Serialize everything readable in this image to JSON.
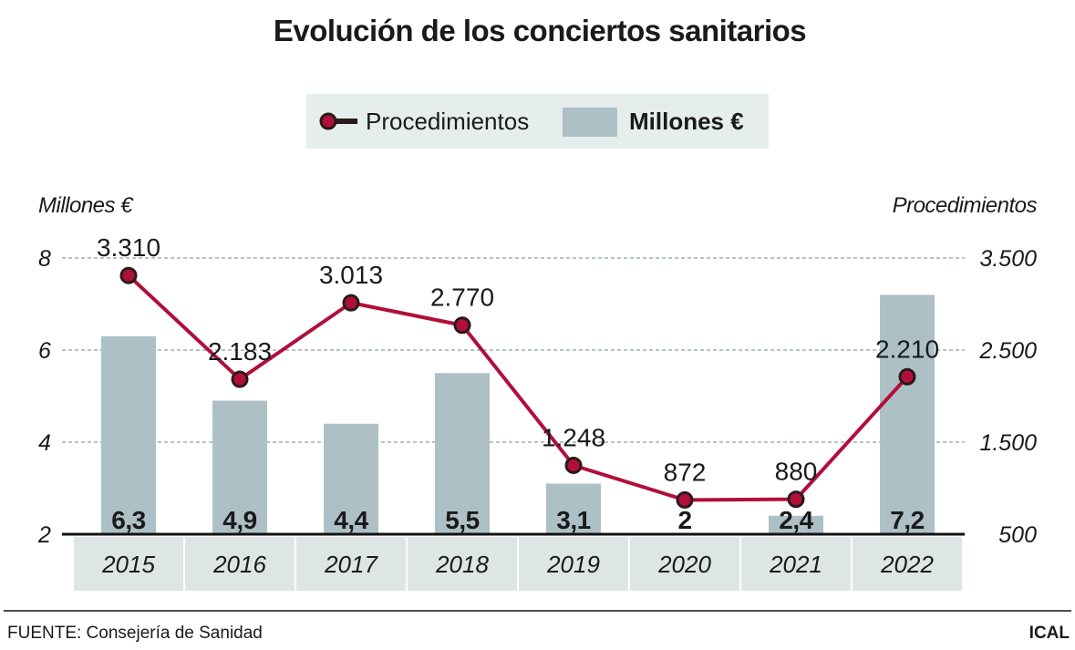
{
  "colors": {
    "bar": "#adc0c6",
    "line": "#b10f3a",
    "marker_outline": "#2a1a1a",
    "legend_bg": "#e6eded",
    "year_cell": "#dde6e5",
    "grid": "#6f8a8a"
  },
  "chart_data": {
    "type": "bar+line",
    "title": "Evolución de los conciertos sanitarios",
    "categories": [
      "2015",
      "2016",
      "2017",
      "2018",
      "2019",
      "2020",
      "2021",
      "2022"
    ],
    "legend": {
      "position": "top-center",
      "entries": [
        "Procedimientos",
        "Millones €"
      ]
    },
    "grid": true,
    "left_axis": {
      "label": "Millones €",
      "ylim": [
        2,
        8
      ],
      "ticks": [
        "2",
        "4",
        "6",
        "8"
      ],
      "tick_values": [
        2,
        4,
        6,
        8
      ]
    },
    "right_axis": {
      "label": "Procedimientos",
      "ylim": [
        500,
        3500
      ],
      "ticks": [
        "500",
        "1.500",
        "2.500",
        "3.500"
      ],
      "tick_values": [
        500,
        1500,
        2500,
        3500
      ]
    },
    "series": [
      {
        "name": "Millones €",
        "type": "bar",
        "axis": "left",
        "values": [
          6.3,
          4.9,
          4.4,
          5.5,
          3.1,
          2,
          2.4,
          7.2
        ],
        "labels": [
          "6,3",
          "4,9",
          "4,4",
          "5,5",
          "3,1",
          "2",
          "2,4",
          "7,2"
        ]
      },
      {
        "name": "Procedimientos",
        "type": "line",
        "axis": "right",
        "values": [
          3310,
          2183,
          3013,
          2770,
          1248,
          872,
          880,
          2210
        ],
        "labels": [
          "3.310",
          "2.183",
          "3.013",
          "2.770",
          "1.248",
          "872",
          "880",
          "2.210"
        ]
      }
    ]
  },
  "footer": {
    "source": "FUENTE: Consejería de Sanidad",
    "brand": "ICAL"
  }
}
